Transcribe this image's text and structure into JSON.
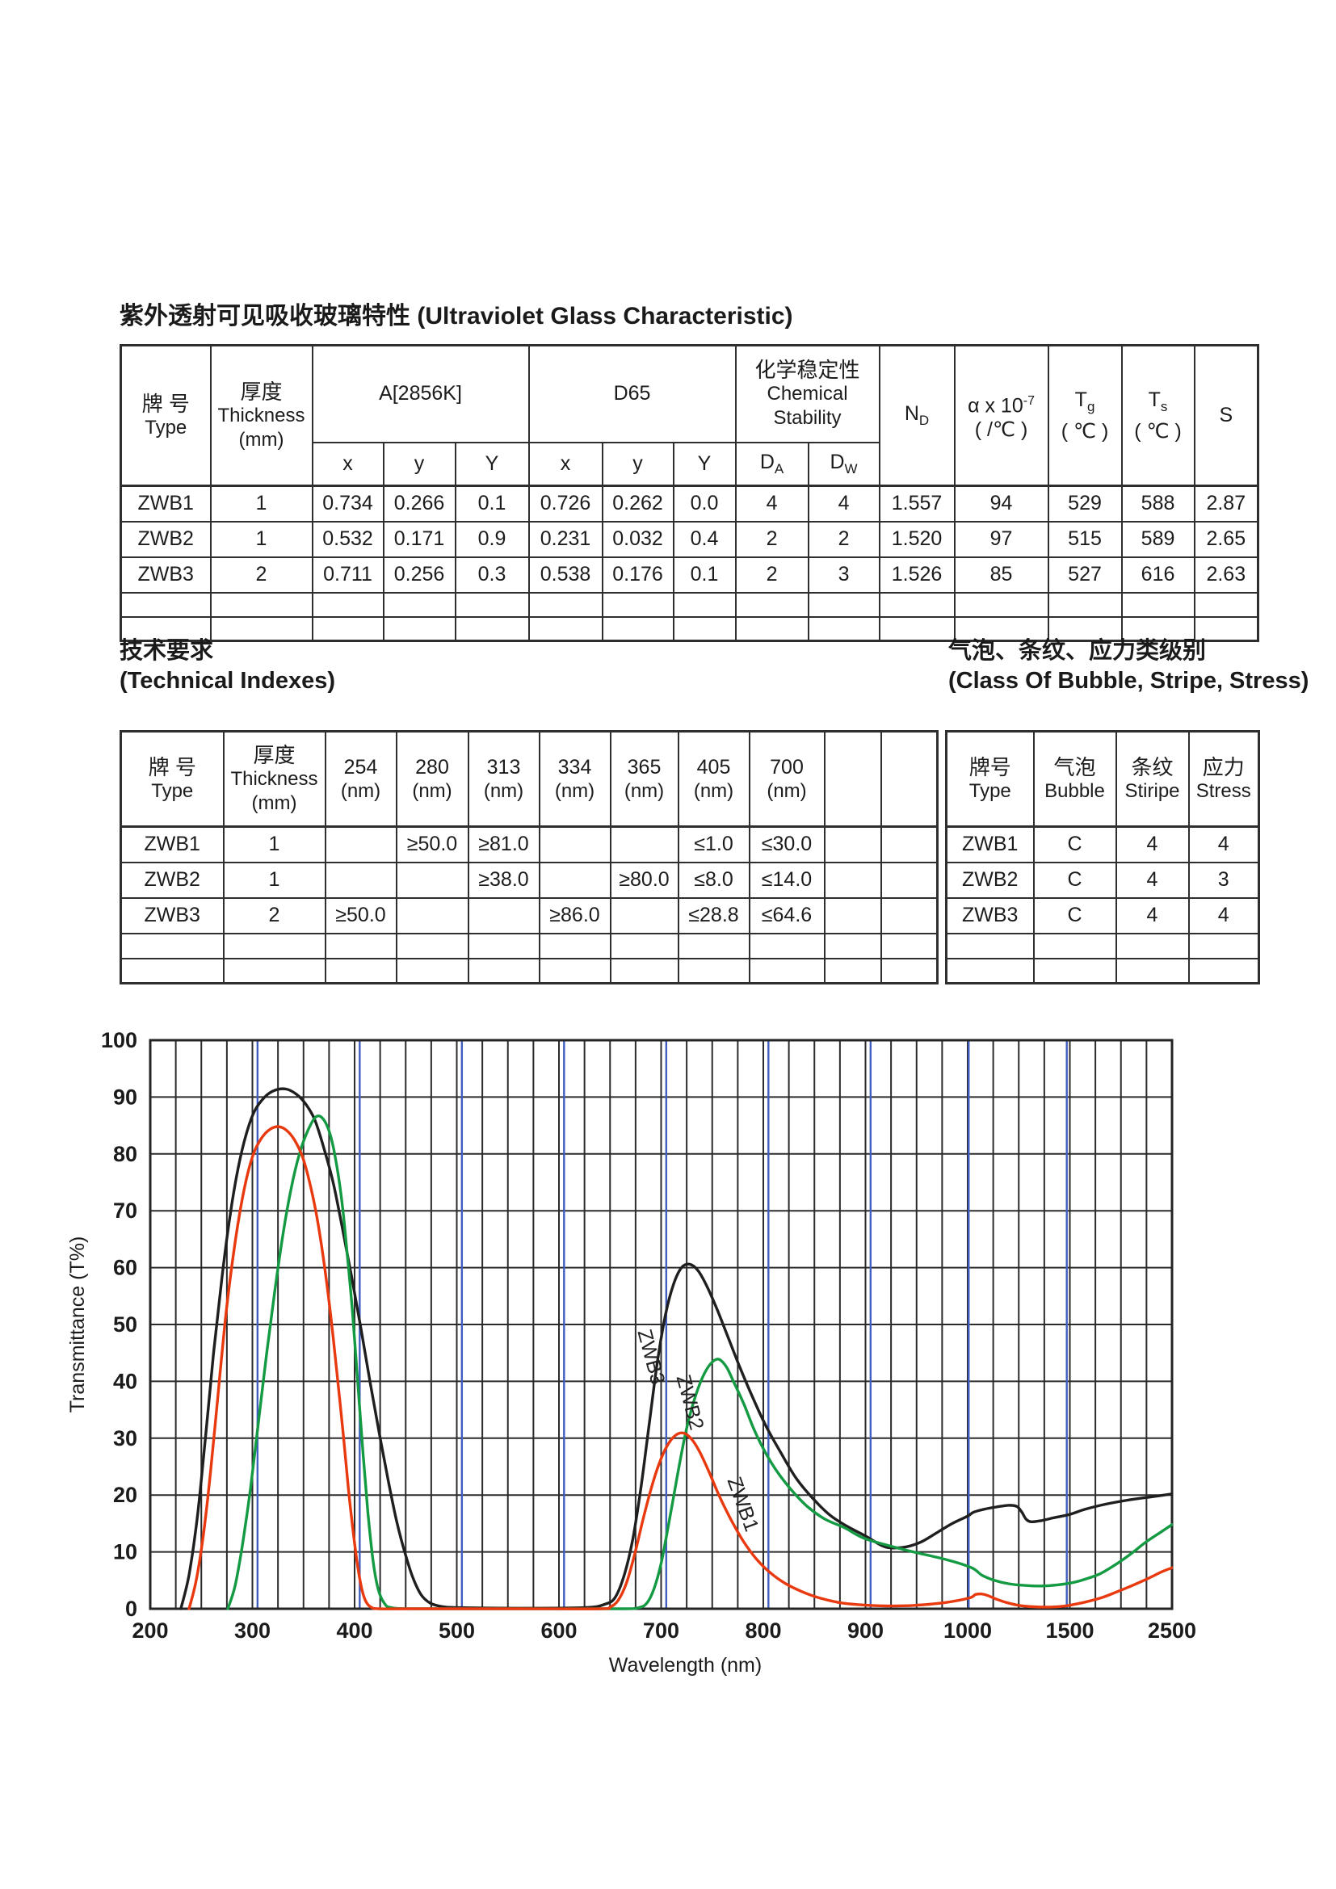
{
  "page": {
    "title": "紫外透射可见吸收玻璃特性 (Ultraviolet Glass Characteristic)"
  },
  "table1": {
    "header": {
      "type_zh": "牌  号",
      "type_en": "Type",
      "thickness_zh": "厚度",
      "thickness_en": "Thickness",
      "thickness_unit": "(mm)",
      "a_label": "A[2856K]",
      "d65_label": "D65",
      "chem_zh": "化学稳定性",
      "chem_en1": "Chemical",
      "chem_en2": "Stability",
      "xyY": [
        "x",
        "y",
        "Y"
      ],
      "da": {
        "b": "D",
        "s": "A"
      },
      "dw": {
        "b": "D",
        "s": "W"
      },
      "nd": {
        "b": "N",
        "s": "D"
      },
      "alpha": {
        "b": "α x 10",
        "sup": "-7",
        "unit": "( /℃ )"
      },
      "tg": {
        "b": "T",
        "s": "g",
        "unit": "( ℃ )"
      },
      "ts": {
        "b": "T",
        "s": "s",
        "unit": "( ℃ )"
      },
      "s_label": "S"
    },
    "rows": [
      [
        "ZWB1",
        "1",
        "0.734",
        "0.266",
        "0.1",
        "0.726",
        "0.262",
        "0.0",
        "4",
        "4",
        "1.557",
        "94",
        "529",
        "588",
        "2.87"
      ],
      [
        "ZWB2",
        "1",
        "0.532",
        "0.171",
        "0.9",
        "0.231",
        "0.032",
        "0.4",
        "2",
        "2",
        "1.520",
        "97",
        "515",
        "589",
        "2.65"
      ],
      [
        "ZWB3",
        "2",
        "0.711",
        "0.256",
        "0.3",
        "0.538",
        "0.176",
        "0.1",
        "2",
        "3",
        "1.526",
        "85",
        "527",
        "616",
        "2.63"
      ]
    ],
    "empty_row": [
      "",
      "",
      "",
      "",
      "",
      "",
      "",
      "",
      "",
      "",
      "",
      "",
      "",
      "",
      ""
    ]
  },
  "sections": {
    "technical": {
      "zh": "技术要求",
      "en": "(Technical Indexes)"
    },
    "bubble": {
      "zh": "气泡、条纹、应力类级别",
      "en": "(Class Of Bubble, Stripe, Stress)"
    }
  },
  "table2": {
    "header": {
      "type_zh": "牌  号",
      "type_en": "Type",
      "thickness_zh": "厚度",
      "thickness_en": "Thickness",
      "thickness_unit": "(mm)",
      "wavelengths": [
        "254",
        "280",
        "313",
        "334",
        "365",
        "405",
        "700"
      ],
      "unit": "(nm)"
    },
    "rows": [
      [
        "ZWB1",
        "1",
        "",
        "≥50.0",
        "≥81.0",
        "",
        "",
        "≤1.0",
        "≤30.0",
        "",
        ""
      ],
      [
        "ZWB2",
        "1",
        "",
        "",
        "≥38.0",
        "",
        "≥80.0",
        "≤8.0",
        "≤14.0",
        "",
        ""
      ],
      [
        "ZWB3",
        "2",
        "≥50.0",
        "",
        "",
        "≥86.0",
        "",
        "≤28.8",
        "≤64.6",
        "",
        ""
      ]
    ],
    "empty_row": [
      "",
      "",
      "",
      "",
      "",
      "",
      "",
      "",
      "",
      "",
      ""
    ]
  },
  "table3": {
    "header": {
      "type_zh": "牌号",
      "type_en": "Type",
      "bubble_zh": "气泡",
      "bubble_en": "Bubble",
      "stripe_zh": "条纹",
      "stripe_en": "Stiripe",
      "stress_zh": "应力",
      "stress_en": "Stress"
    },
    "rows": [
      [
        "ZWB1",
        "C",
        "4",
        "4"
      ],
      [
        "ZWB2",
        "C",
        "4",
        "3"
      ],
      [
        "ZWB3",
        "C",
        "4",
        "4"
      ]
    ],
    "empty_row": [
      "",
      "",
      "",
      ""
    ]
  },
  "chart_data": {
    "type": "line",
    "title": "",
    "xlabel": "Wavelength (nm)",
    "ylabel": "Transmittance (T%)",
    "ylim": [
      0,
      100
    ],
    "y_ticks": [
      0,
      10,
      20,
      30,
      40,
      50,
      60,
      70,
      80,
      90,
      100
    ],
    "x_ticks": [
      200,
      300,
      400,
      500,
      600,
      700,
      800,
      900,
      1000,
      1500,
      2500
    ],
    "x_scale_note": "linear 200-1000 nm; compressed segments 1000-1500 and 1500-2500",
    "grid": {
      "minor_step_nm": 25,
      "line_color": "#2b2b2b",
      "blue_line_color": "#3f5ec0",
      "blue_lines_nm": [
        305,
        405,
        505,
        605,
        705,
        805,
        905,
        1005,
        1485
      ]
    },
    "series": [
      {
        "name": "ZWB3",
        "color": "#1f1f1f",
        "label_pos": {
          "nm": 684,
          "pct": 44,
          "rotate": 75
        },
        "points": [
          [
            230,
            0
          ],
          [
            238,
            6
          ],
          [
            246,
            16
          ],
          [
            254,
            30
          ],
          [
            262,
            45
          ],
          [
            270,
            58
          ],
          [
            278,
            69
          ],
          [
            286,
            77.5
          ],
          [
            294,
            83.5
          ],
          [
            302,
            87.5
          ],
          [
            312,
            90
          ],
          [
            322,
            91.2
          ],
          [
            333,
            91.4
          ],
          [
            343,
            90.5
          ],
          [
            352,
            88.8
          ],
          [
            361,
            86
          ],
          [
            370,
            81
          ],
          [
            379,
            75
          ],
          [
            388,
            67
          ],
          [
            397,
            58.5
          ],
          [
            406,
            49.5
          ],
          [
            415,
            40
          ],
          [
            424,
            31
          ],
          [
            433,
            22.5
          ],
          [
            441,
            15.5
          ],
          [
            449,
            10
          ],
          [
            457,
            5.5
          ],
          [
            465,
            2.5
          ],
          [
            474,
            1
          ],
          [
            485,
            0.4
          ],
          [
            500,
            0.2
          ],
          [
            560,
            0.1
          ],
          [
            625,
            0.2
          ],
          [
            645,
            0.8
          ],
          [
            655,
            2
          ],
          [
            664,
            6
          ],
          [
            672,
            12
          ],
          [
            680,
            21
          ],
          [
            688,
            32
          ],
          [
            696,
            43
          ],
          [
            704,
            51.5
          ],
          [
            712,
            57
          ],
          [
            720,
            60
          ],
          [
            728,
            60.6
          ],
          [
            736,
            59.5
          ],
          [
            744,
            57
          ],
          [
            754,
            53
          ],
          [
            765,
            48
          ],
          [
            777,
            42.5
          ],
          [
            790,
            37
          ],
          [
            803,
            32
          ],
          [
            817,
            27.5
          ],
          [
            832,
            23
          ],
          [
            848,
            19.5
          ],
          [
            865,
            16.5
          ],
          [
            882,
            14.5
          ],
          [
            900,
            12.8
          ],
          [
            915,
            11.2
          ],
          [
            925,
            10.7
          ],
          [
            940,
            10.9
          ],
          [
            955,
            11.8
          ],
          [
            970,
            13.4
          ],
          [
            985,
            15
          ],
          [
            1000,
            16.3
          ],
          [
            1030,
            17
          ],
          [
            1080,
            17.5
          ],
          [
            1140,
            17.9
          ],
          [
            1200,
            18.2
          ],
          [
            1240,
            18
          ],
          [
            1265,
            17
          ],
          [
            1285,
            15.8
          ],
          [
            1310,
            15.3
          ],
          [
            1360,
            15.5
          ],
          [
            1420,
            16
          ],
          [
            1500,
            16.6
          ],
          [
            1650,
            17.5
          ],
          [
            1850,
            18.4
          ],
          [
            2100,
            19.2
          ],
          [
            2350,
            19.8
          ],
          [
            2500,
            20.2
          ]
        ]
      },
      {
        "name": "ZWB2",
        "color": "#149a42",
        "label_pos": {
          "nm": 722,
          "pct": 36,
          "rotate": 75
        },
        "points": [
          [
            276,
            0
          ],
          [
            283,
            4
          ],
          [
            290,
            11
          ],
          [
            298,
            21
          ],
          [
            306,
            33
          ],
          [
            314,
            45
          ],
          [
            322,
            56
          ],
          [
            330,
            66
          ],
          [
            338,
            74
          ],
          [
            346,
            80
          ],
          [
            354,
            84
          ],
          [
            362,
            86.5
          ],
          [
            369,
            86.2
          ],
          [
            376,
            83.5
          ],
          [
            382,
            78.5
          ],
          [
            388,
            71
          ],
          [
            393,
            62
          ],
          [
            398,
            52
          ],
          [
            403,
            40
          ],
          [
            408,
            28
          ],
          [
            413,
            17
          ],
          [
            418,
            8.5
          ],
          [
            423,
            3.5
          ],
          [
            429,
            1
          ],
          [
            436,
            0.2
          ],
          [
            460,
            0
          ],
          [
            560,
            0
          ],
          [
            660,
            0
          ],
          [
            678,
            0.2
          ],
          [
            686,
            1
          ],
          [
            693,
            3.5
          ],
          [
            700,
            8
          ],
          [
            708,
            15.5
          ],
          [
            716,
            23.5
          ],
          [
            724,
            31
          ],
          [
            732,
            36.5
          ],
          [
            740,
            40.5
          ],
          [
            748,
            43
          ],
          [
            756,
            43.9
          ],
          [
            764,
            42.5
          ],
          [
            772,
            39.5
          ],
          [
            781,
            36
          ],
          [
            791,
            31.5
          ],
          [
            802,
            27.5
          ],
          [
            814,
            24
          ],
          [
            828,
            20.8
          ],
          [
            843,
            18
          ],
          [
            860,
            15.8
          ],
          [
            880,
            14.2
          ],
          [
            900,
            12.3
          ],
          [
            940,
            10.3
          ],
          [
            980,
            8.6
          ],
          [
            1020,
            7.2
          ],
          [
            1070,
            5.9
          ],
          [
            1130,
            5
          ],
          [
            1200,
            4.4
          ],
          [
            1280,
            4.1
          ],
          [
            1360,
            4
          ],
          [
            1440,
            4.2
          ],
          [
            1530,
            4.6
          ],
          [
            1650,
            5.2
          ],
          [
            1800,
            6.2
          ],
          [
            1950,
            7.8
          ],
          [
            2100,
            9.7
          ],
          [
            2250,
            11.8
          ],
          [
            2400,
            13.6
          ],
          [
            2500,
            14.8
          ]
        ]
      },
      {
        "name": "ZWB1",
        "color": "#e8390f",
        "label_pos": {
          "nm": 774,
          "pct": 18,
          "rotate": 70
        },
        "points": [
          [
            238,
            0
          ],
          [
            245,
            5
          ],
          [
            252,
            13
          ],
          [
            259,
            24
          ],
          [
            266,
            37
          ],
          [
            273,
            50
          ],
          [
            280,
            60.5
          ],
          [
            287,
            69
          ],
          [
            294,
            75.5
          ],
          [
            301,
            80
          ],
          [
            309,
            82.8
          ],
          [
            317,
            84.3
          ],
          [
            325,
            84.8
          ],
          [
            333,
            84.2
          ],
          [
            341,
            82.5
          ],
          [
            349,
            79.5
          ],
          [
            356,
            75
          ],
          [
            363,
            69
          ],
          [
            370,
            61
          ],
          [
            377,
            51
          ],
          [
            383,
            41
          ],
          [
            389,
            30.5
          ],
          [
            394,
            21
          ],
          [
            399,
            13
          ],
          [
            403,
            7.5
          ],
          [
            407,
            3.5
          ],
          [
            411,
            1.3
          ],
          [
            416,
            0.3
          ],
          [
            424,
            0
          ],
          [
            460,
            0
          ],
          [
            560,
            0
          ],
          [
            640,
            0
          ],
          [
            650,
            0.3
          ],
          [
            658,
            1.5
          ],
          [
            666,
            4.5
          ],
          [
            674,
            9.5
          ],
          [
            682,
            15.5
          ],
          [
            690,
            21
          ],
          [
            698,
            25.5
          ],
          [
            706,
            28.7
          ],
          [
            714,
            30.5
          ],
          [
            722,
            30.9
          ],
          [
            730,
            29.8
          ],
          [
            738,
            27.5
          ],
          [
            747,
            24
          ],
          [
            757,
            19.8
          ],
          [
            768,
            15.8
          ],
          [
            780,
            12
          ],
          [
            793,
            8.8
          ],
          [
            807,
            6.3
          ],
          [
            822,
            4.4
          ],
          [
            838,
            3
          ],
          [
            855,
            1.9
          ],
          [
            874,
            1.1
          ],
          [
            895,
            0.7
          ],
          [
            920,
            0.5
          ],
          [
            948,
            0.6
          ],
          [
            978,
            1.1
          ],
          [
            1008,
            1.9
          ],
          [
            1038,
            2.5
          ],
          [
            1068,
            2.6
          ],
          [
            1100,
            2.3
          ],
          [
            1140,
            1.7
          ],
          [
            1190,
            1.1
          ],
          [
            1250,
            0.6
          ],
          [
            1320,
            0.35
          ],
          [
            1400,
            0.3
          ],
          [
            1470,
            0.45
          ],
          [
            1550,
            0.8
          ],
          [
            1680,
            1.3
          ],
          [
            1820,
            2
          ],
          [
            1950,
            2.9
          ],
          [
            2100,
            4
          ],
          [
            2250,
            5.2
          ],
          [
            2400,
            6.5
          ],
          [
            2500,
            7.2
          ]
        ]
      }
    ]
  }
}
